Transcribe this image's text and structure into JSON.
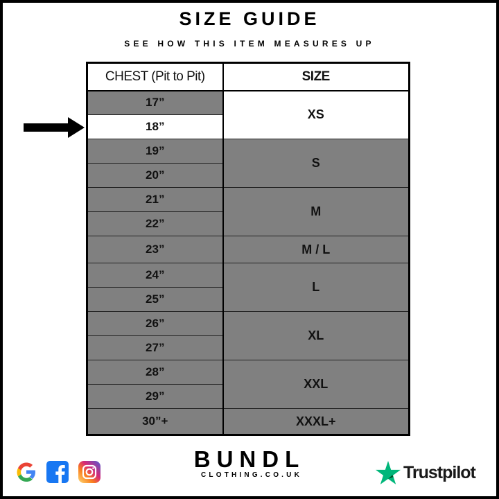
{
  "title": "SIZE GUIDE",
  "subtitle": "SEE HOW THIS ITEM MEASURES UP",
  "table": {
    "headers": [
      "CHEST (Pit to Pit)",
      "SIZE"
    ],
    "chest": [
      "17”",
      "18”",
      "19”",
      "20”",
      "21”",
      "22”",
      "23”",
      "24”",
      "25”",
      "26”",
      "27”",
      "28”",
      "29”",
      "30”+"
    ],
    "sizes": [
      "XS",
      "S",
      "M",
      "M / L",
      "L",
      "XL",
      "XXL",
      "XXXL+"
    ],
    "highlighted_chest": "18”",
    "highlighted_size": "XS"
  },
  "colors": {
    "row_fill": "#808080",
    "highlight_fill": "#ffffff",
    "trustpilot_green": "#00b67a"
  },
  "footer": {
    "social_icons": [
      "google-icon",
      "facebook-icon",
      "instagram-icon"
    ],
    "brand": "BUNDL",
    "brand_sub": "CLOTHING.CO.UK",
    "trustpilot": "Trustpilot"
  }
}
